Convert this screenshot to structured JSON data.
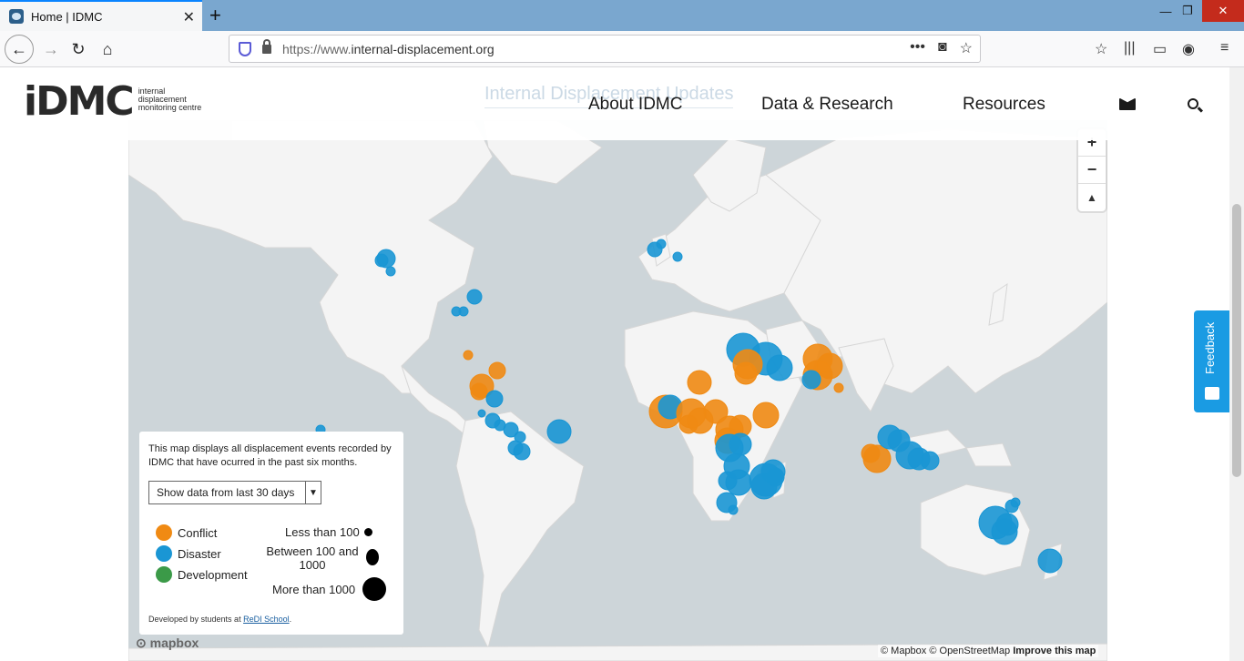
{
  "browser": {
    "tab_title": "Home | IDMC",
    "url_prefix": "https://www.",
    "url_domain": "internal-displacement.org"
  },
  "header": {
    "logo_mark": "iDMC",
    "logo_sub": "internal displacement monitoring centre",
    "ghost_title": "Internal Displacement Updates",
    "nav": [
      "About IDMC",
      "Data & Research",
      "Resources"
    ]
  },
  "map": {
    "zoom_in": "+",
    "zoom_out": "−",
    "compass": "▲",
    "legend": {
      "description": "This map displays all displacement events recorded by IDMC that have ocurred in the past six months.",
      "select_value": "Show data from last 30 days",
      "types": [
        {
          "label": "Conflict",
          "color": "#f08a13"
        },
        {
          "label": "Disaster",
          "color": "#1a96d4"
        },
        {
          "label": "Development",
          "color": "#3b9a48"
        }
      ],
      "sizes": [
        "Less than 100",
        "Between 100 and 1000",
        "More than 1000"
      ],
      "credit_prefix": "Developed by students at ",
      "credit_link": "ReDI School",
      "credit_suffix": "."
    },
    "attribution": "© Mapbox © OpenStreetMap",
    "attribution_bold": "Improve this map",
    "mapbox_logo": "mapbox"
  },
  "feedback": "Feedback"
}
